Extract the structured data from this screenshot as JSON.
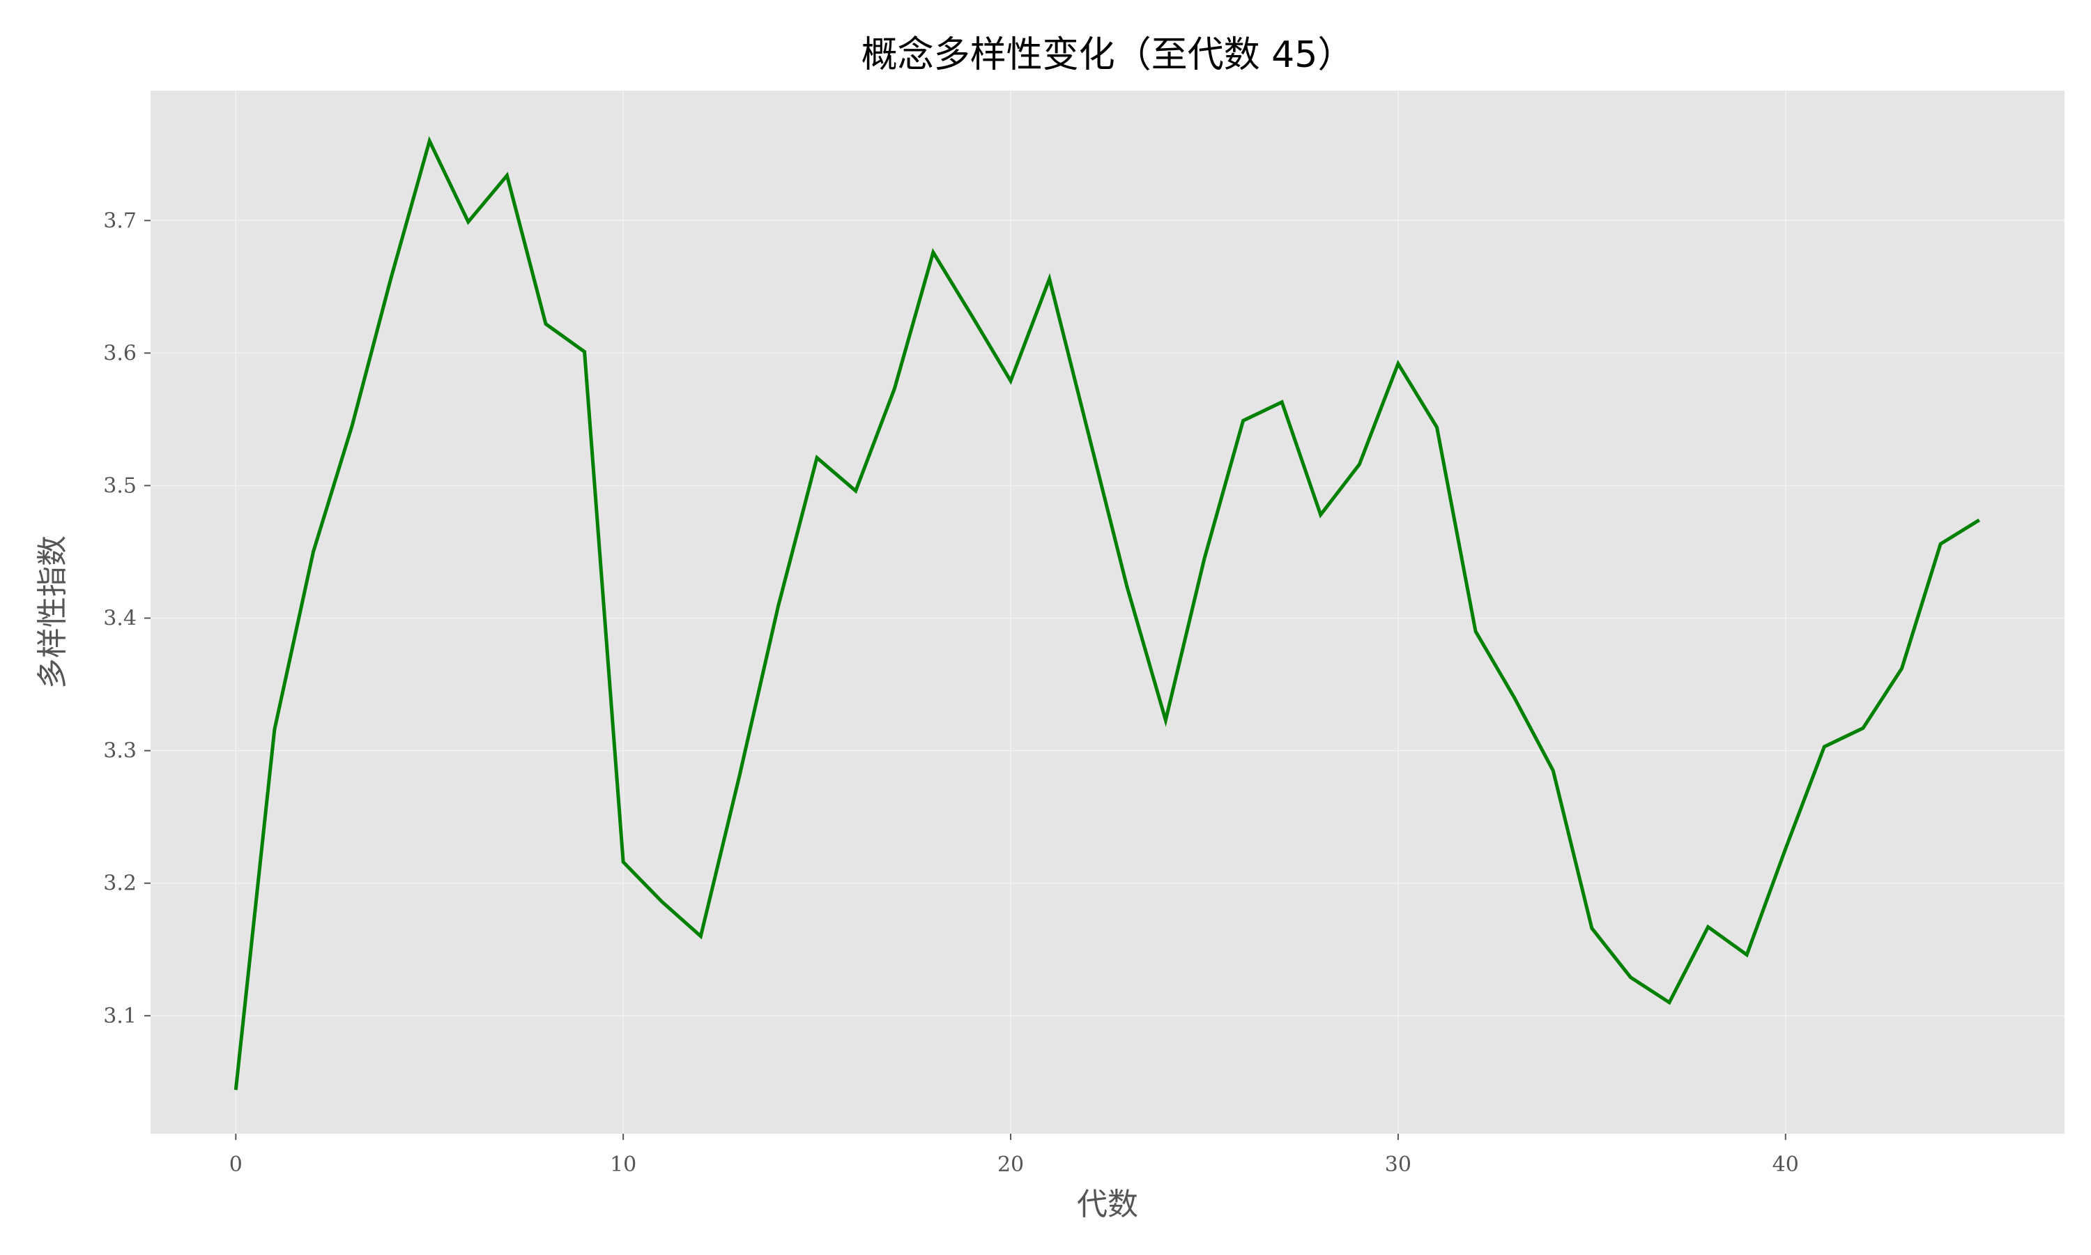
{
  "chart_data": {
    "type": "line",
    "title": "概念多样性变化（至代数 45）",
    "xlabel": "代数",
    "ylabel": "多样性指数",
    "xlim": [
      -2.2,
      47.2
    ],
    "ylim": [
      3.011,
      3.798
    ],
    "grid": true,
    "x_ticks": [
      0,
      10,
      20,
      30,
      40
    ],
    "x_tick_labels": [
      "0",
      "10",
      "20",
      "30",
      "40"
    ],
    "y_ticks": [
      3.1,
      3.2,
      3.3,
      3.4,
      3.5,
      3.6,
      3.7
    ],
    "y_tick_labels": [
      "3.1",
      "3.2",
      "3.3",
      "3.4",
      "3.5",
      "3.6",
      "3.7"
    ],
    "series": [
      {
        "name": "多样性指数",
        "color": "#008000",
        "x": [
          0,
          1,
          2,
          3,
          4,
          5,
          6,
          7,
          8,
          9,
          10,
          11,
          12,
          13,
          14,
          15,
          16,
          17,
          18,
          19,
          20,
          21,
          22,
          23,
          24,
          25,
          26,
          27,
          28,
          29,
          30,
          31,
          32,
          33,
          34,
          35,
          36,
          37,
          38,
          39,
          40,
          41,
          42,
          43,
          44,
          45
        ],
        "values": [
          3.044,
          3.316,
          3.45,
          3.545,
          3.656,
          3.76,
          3.699,
          3.734,
          3.622,
          3.601,
          3.216,
          3.186,
          3.16,
          3.281,
          3.409,
          3.521,
          3.496,
          3.573,
          3.676,
          3.628,
          3.579,
          3.656,
          3.54,
          3.424,
          3.323,
          3.445,
          3.549,
          3.563,
          3.478,
          3.516,
          3.592,
          3.544,
          3.39,
          3.34,
          3.285,
          3.166,
          3.129,
          3.11,
          3.167,
          3.146,
          3.226,
          3.303,
          3.317,
          3.362,
          3.456,
          3.474
        ]
      }
    ]
  },
  "colors": {
    "panel_background": "#e5e5e5",
    "grid": "#f2f2f2",
    "tick": "#555555",
    "line": "#008000"
  }
}
